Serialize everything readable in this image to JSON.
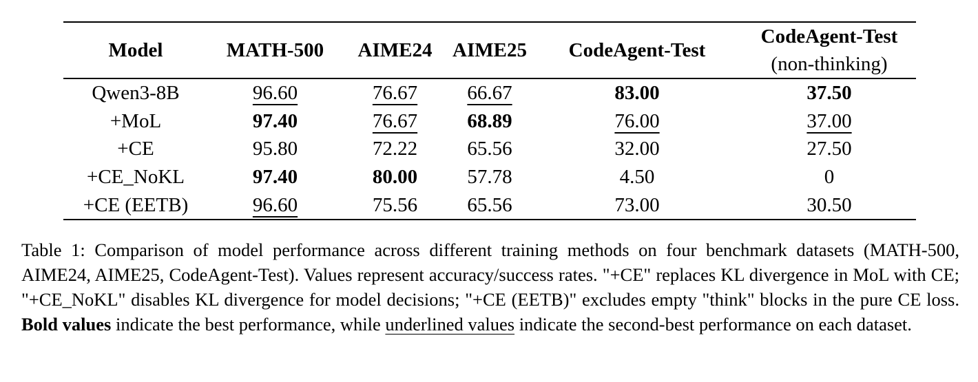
{
  "table": {
    "headers": [
      {
        "main": "Model",
        "sub": ""
      },
      {
        "main": "MATH-500",
        "sub": ""
      },
      {
        "main": "AIME24",
        "sub": ""
      },
      {
        "main": "AIME25",
        "sub": ""
      },
      {
        "main": "CodeAgent-Test",
        "sub": ""
      },
      {
        "main": "CodeAgent-Test",
        "sub": "(non-thinking)"
      }
    ],
    "rows": [
      {
        "model": "Qwen3-8B",
        "cells": [
          {
            "value": "96.60",
            "style": "underline"
          },
          {
            "value": "76.67",
            "style": "underline"
          },
          {
            "value": "66.67",
            "style": "underline"
          },
          {
            "value": "83.00",
            "style": "bold"
          },
          {
            "value": "37.50",
            "style": "bold"
          }
        ]
      },
      {
        "model": "+MoL",
        "cells": [
          {
            "value": "97.40",
            "style": "bold"
          },
          {
            "value": "76.67",
            "style": "underline"
          },
          {
            "value": "68.89",
            "style": "bold"
          },
          {
            "value": "76.00",
            "style": "underline"
          },
          {
            "value": "37.00",
            "style": "underline"
          }
        ]
      },
      {
        "model": "+CE",
        "cells": [
          {
            "value": "95.80",
            "style": "normal"
          },
          {
            "value": "72.22",
            "style": "normal"
          },
          {
            "value": "65.56",
            "style": "normal"
          },
          {
            "value": "32.00",
            "style": "normal"
          },
          {
            "value": "27.50",
            "style": "normal"
          }
        ]
      },
      {
        "model": "+CE_NoKL",
        "cells": [
          {
            "value": "97.40",
            "style": "bold"
          },
          {
            "value": "80.00",
            "style": "bold"
          },
          {
            "value": "57.78",
            "style": "normal"
          },
          {
            "value": "4.50",
            "style": "normal"
          },
          {
            "value": "0",
            "style": "normal"
          }
        ]
      },
      {
        "model": "+CE (EETB)",
        "cells": [
          {
            "value": "96.60",
            "style": "underline"
          },
          {
            "value": "75.56",
            "style": "normal"
          },
          {
            "value": "65.56",
            "style": "normal"
          },
          {
            "value": "73.00",
            "style": "normal"
          },
          {
            "value": "30.50",
            "style": "normal"
          }
        ]
      }
    ]
  },
  "caption": {
    "label": "Table 1:",
    "text_1": " Comparison of model performance across different training methods on four benchmark datasets (MATH-500, AIME24, AIME25, CodeAgent-Test). Values represent accuracy/success rates. \"+CE\" replaces KL divergence in MoL with CE; \"+CE_NoKL\" disables KL divergence for model decisions; \"+CE (EETB)\" excludes empty \"think\" blocks in the pure CE loss. ",
    "bold_phrase": "Bold values",
    "text_2": " indicate the best performance, while ",
    "underline_phrase": "underlined values",
    "text_3": " indicate the second-best performance on each dataset."
  }
}
